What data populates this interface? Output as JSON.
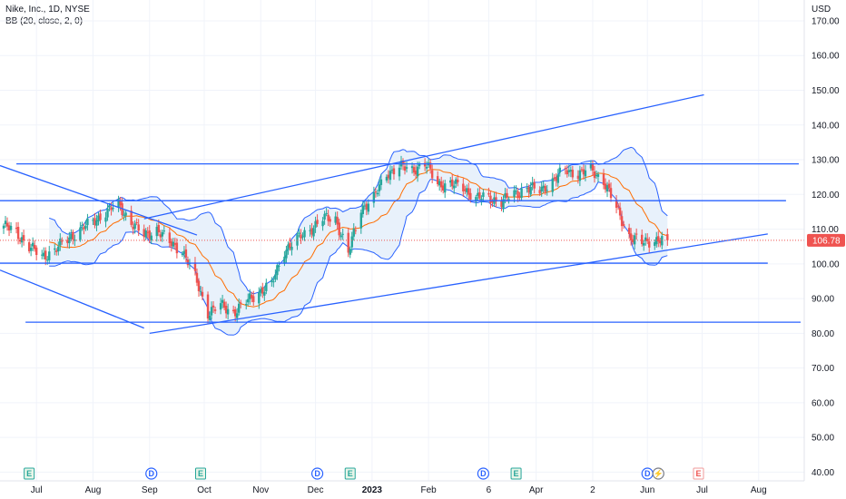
{
  "legend": {
    "symbol_line": "Nike, Inc., 1D, NYSE",
    "indicator_line": "BB (20, close, 2, 0)"
  },
  "colors": {
    "up": "#26a69a",
    "down": "#ef5350",
    "band": "#2962ff",
    "basis": "#ff6d00",
    "band_fill": "#e8f1fb",
    "trendline": "#2962ff",
    "price_tag": "#ef5350",
    "grid": "#f0f3fa"
  },
  "chart_data": {
    "type": "candlestick",
    "currency_label": "USD",
    "y_ticks": [
      40,
      50,
      60,
      70,
      80,
      90,
      100,
      110,
      120,
      130,
      140,
      150,
      160,
      170
    ],
    "y_tick_labels": [
      "40.00",
      "50.00",
      "60.00",
      "70.00",
      "80.00",
      "90.00",
      "100.00",
      "110.00",
      "120.00",
      "130.00",
      "140.00",
      "150.00",
      "160.00",
      "170.00"
    ],
    "ylim": [
      37.5,
      176
    ],
    "x_ticks": [
      {
        "label": "Jul",
        "date": "2022-07-01"
      },
      {
        "label": "Aug",
        "date": "2022-08-01"
      },
      {
        "label": "Sep",
        "date": "2022-09-01"
      },
      {
        "label": "Oct",
        "date": "2022-10-01"
      },
      {
        "label": "Nov",
        "date": "2022-11-01"
      },
      {
        "label": "Dec",
        "date": "2022-12-01"
      },
      {
        "label": "2023",
        "date": "2023-01-01"
      },
      {
        "label": "Feb",
        "date": "2023-02-01"
      },
      {
        "label": "6",
        "date": "2023-03-06"
      },
      {
        "label": "Apr",
        "date": "2023-04-01"
      },
      {
        "label": "2",
        "date": "2023-05-02"
      },
      {
        "label": "Jun",
        "date": "2023-06-01"
      },
      {
        "label": "Jul",
        "date": "2023-07-01"
      },
      {
        "label": "Aug",
        "date": "2023-08-01"
      }
    ],
    "xlim": [
      "2022-06-11",
      "2023-08-26"
    ],
    "last_price": 106.78,
    "last_price_label": "106.78",
    "closes": [
      {
        "date": "2022-06-13",
        "close": 111
      },
      {
        "date": "2022-06-20",
        "close": 109
      },
      {
        "date": "2022-06-27",
        "close": 105
      },
      {
        "date": "2022-07-04",
        "close": 102
      },
      {
        "date": "2022-07-11",
        "close": 104
      },
      {
        "date": "2022-07-18",
        "close": 107
      },
      {
        "date": "2022-07-25",
        "close": 110
      },
      {
        "date": "2022-08-01",
        "close": 112
      },
      {
        "date": "2022-08-08",
        "close": 115
      },
      {
        "date": "2022-08-15",
        "close": 117
      },
      {
        "date": "2022-08-22",
        "close": 112
      },
      {
        "date": "2022-08-29",
        "close": 108
      },
      {
        "date": "2022-09-05",
        "close": 110
      },
      {
        "date": "2022-09-12",
        "close": 106
      },
      {
        "date": "2022-09-19",
        "close": 104
      },
      {
        "date": "2022-09-26",
        "close": 96
      },
      {
        "date": "2022-10-03",
        "close": 86
      },
      {
        "date": "2022-10-10",
        "close": 88
      },
      {
        "date": "2022-10-17",
        "close": 86
      },
      {
        "date": "2022-10-24",
        "close": 89
      },
      {
        "date": "2022-10-31",
        "close": 92
      },
      {
        "date": "2022-11-07",
        "close": 94
      },
      {
        "date": "2022-11-14",
        "close": 104
      },
      {
        "date": "2022-11-21",
        "close": 107
      },
      {
        "date": "2022-11-28",
        "close": 110
      },
      {
        "date": "2022-12-05",
        "close": 113
      },
      {
        "date": "2022-12-12",
        "close": 113
      },
      {
        "date": "2022-12-19",
        "close": 103
      },
      {
        "date": "2022-12-26",
        "close": 116
      },
      {
        "date": "2023-01-02",
        "close": 119
      },
      {
        "date": "2023-01-09",
        "close": 126
      },
      {
        "date": "2023-01-16",
        "close": 128
      },
      {
        "date": "2023-01-23",
        "close": 127
      },
      {
        "date": "2023-01-30",
        "close": 129
      },
      {
        "date": "2023-02-06",
        "close": 123
      },
      {
        "date": "2023-02-13",
        "close": 123
      },
      {
        "date": "2023-02-20",
        "close": 122
      },
      {
        "date": "2023-02-27",
        "close": 119
      },
      {
        "date": "2023-03-06",
        "close": 119
      },
      {
        "date": "2023-03-13",
        "close": 118
      },
      {
        "date": "2023-03-20",
        "close": 120
      },
      {
        "date": "2023-03-27",
        "close": 122
      },
      {
        "date": "2023-04-03",
        "close": 121
      },
      {
        "date": "2023-04-10",
        "close": 124
      },
      {
        "date": "2023-04-17",
        "close": 127
      },
      {
        "date": "2023-04-24",
        "close": 126
      },
      {
        "date": "2023-05-01",
        "close": 127
      },
      {
        "date": "2023-05-08",
        "close": 124
      },
      {
        "date": "2023-05-15",
        "close": 116
      },
      {
        "date": "2023-05-22",
        "close": 108
      },
      {
        "date": "2023-05-29",
        "close": 106
      },
      {
        "date": "2023-06-05",
        "close": 107
      },
      {
        "date": "2023-06-12",
        "close": 106.78
      }
    ],
    "horizontal_levels": [
      {
        "price": 128.8,
        "from": "2022-06-20",
        "to": "2023-08-23"
      },
      {
        "price": 118.2,
        "from": "2022-06-11",
        "to": "2023-08-16"
      },
      {
        "price": 100.2,
        "from": "2022-06-11",
        "to": "2023-08-06"
      },
      {
        "price": 83.2,
        "from": "2022-06-25",
        "to": "2023-08-24"
      }
    ],
    "trend_lines": [
      {
        "from": {
          "date": "2022-06-11",
          "price": 128.3
        },
        "to": {
          "date": "2022-09-27",
          "price": 108.3
        }
      },
      {
        "from": {
          "date": "2022-06-11",
          "price": 98.2
        },
        "to": {
          "date": "2022-08-29",
          "price": 81.5
        }
      },
      {
        "from": {
          "date": "2022-08-29",
          "price": 113.0
        },
        "to": {
          "date": "2023-07-02",
          "price": 148.7
        }
      },
      {
        "from": {
          "date": "2022-09-01",
          "price": 80.0
        },
        "to": {
          "date": "2023-08-06",
          "price": 108.6
        }
      }
    ],
    "event_markers": [
      {
        "type": "earnings",
        "label": "E",
        "date": "2022-06-27"
      },
      {
        "type": "dividend",
        "label": "D",
        "date": "2022-09-02"
      },
      {
        "type": "earnings",
        "label": "E",
        "date": "2022-09-29"
      },
      {
        "type": "dividend",
        "label": "D",
        "date": "2022-12-02"
      },
      {
        "type": "earnings",
        "label": "E",
        "date": "2022-12-20"
      },
      {
        "type": "dividend",
        "label": "D",
        "date": "2023-03-03"
      },
      {
        "type": "earnings",
        "label": "E",
        "date": "2023-03-21"
      },
      {
        "type": "dividend",
        "label": "D",
        "date": "2023-06-01"
      },
      {
        "type": "split",
        "label": "⚡",
        "date": "2023-06-07"
      },
      {
        "type": "earnings-upcoming",
        "label": "E",
        "date": "2023-06-29"
      }
    ]
  }
}
